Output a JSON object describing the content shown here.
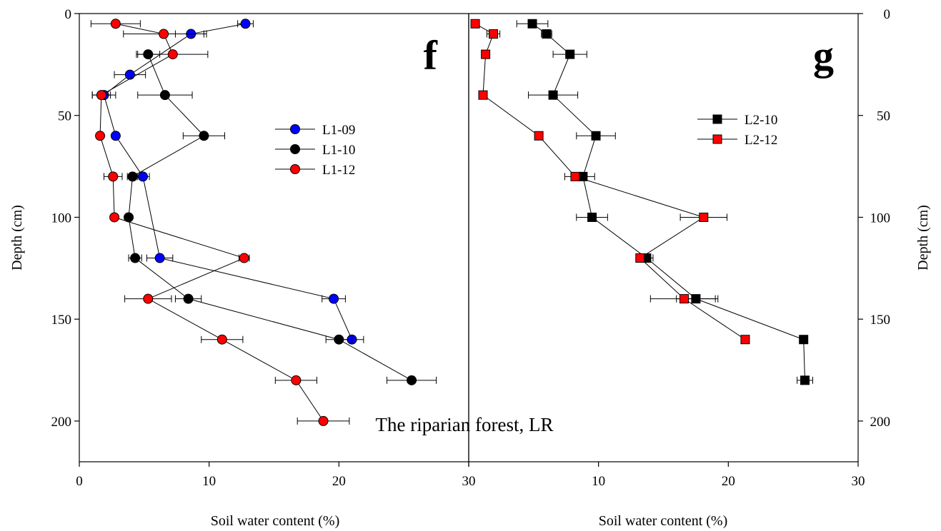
{
  "chart_data": [
    {
      "type": "scatter",
      "panel_label": "f",
      "xlabel": "Soil water content (%)",
      "ylabel": "Depth (cm)",
      "xlim": [
        0,
        30
      ],
      "ylim": [
        220,
        0
      ],
      "x_ticks": [
        0,
        10,
        20,
        30
      ],
      "y_ticks": [
        0,
        50,
        100,
        150,
        200
      ],
      "tick_labels_x": [
        "0",
        "10",
        "20",
        "30"
      ],
      "tick_labels_y": [
        "0",
        "50",
        "100",
        "150",
        "200"
      ],
      "grid": false,
      "legend_position": "center-right",
      "series": [
        {
          "name": "L1-09",
          "color": "#0000ff",
          "marker": "circle",
          "points": [
            {
              "x": 12.8,
              "y": 5,
              "err": 0.6
            },
            {
              "x": 8.6,
              "y": 10,
              "err": 1.2
            },
            {
              "x": 3.9,
              "y": 30,
              "err": 1.2
            },
            {
              "x": 1.9,
              "y": 40,
              "err": 0.9
            },
            {
              "x": 2.8,
              "y": 60,
              "err": 0
            },
            {
              "x": 4.9,
              "y": 80,
              "err": 0.5
            },
            {
              "x": 6.2,
              "y": 120,
              "err": 1.0
            },
            {
              "x": 19.6,
              "y": 140,
              "err": 0.9
            },
            {
              "x": 21.0,
              "y": 160,
              "err": 0.9
            }
          ]
        },
        {
          "name": "L1-10",
          "color": "#000000",
          "marker": "circle",
          "points": [
            {
              "x": 5.3,
              "y": 20,
              "err": 0.9
            },
            {
              "x": 6.6,
              "y": 40,
              "err": 2.1
            },
            {
              "x": 9.6,
              "y": 60,
              "err": 1.6
            },
            {
              "x": 4.1,
              "y": 80,
              "err": 0.4
            },
            {
              "x": 3.8,
              "y": 100,
              "err": 0
            },
            {
              "x": 4.3,
              "y": 120,
              "err": 0.5
            },
            {
              "x": 8.4,
              "y": 140,
              "err": 1.0
            },
            {
              "x": 20.0,
              "y": 160,
              "err": 1.0
            },
            {
              "x": 25.6,
              "y": 180,
              "err": 1.9
            }
          ]
        },
        {
          "name": "L1-12",
          "color": "#ff0000",
          "marker": "circle",
          "points": [
            {
              "x": 2.8,
              "y": 5,
              "err": 1.9
            },
            {
              "x": 6.5,
              "y": 10,
              "err": 3.1
            },
            {
              "x": 7.2,
              "y": 20,
              "err": 2.7
            },
            {
              "x": 1.7,
              "y": 40,
              "err": 0.7
            },
            {
              "x": 1.6,
              "y": 60,
              "err": 0
            },
            {
              "x": 2.6,
              "y": 80,
              "err": 0.7
            },
            {
              "x": 2.7,
              "y": 100,
              "err": 0
            },
            {
              "x": 12.7,
              "y": 120,
              "err": 0.4
            },
            {
              "x": 5.3,
              "y": 140,
              "err": 1.8
            },
            {
              "x": 11.0,
              "y": 160,
              "err": 1.6
            },
            {
              "x": 16.7,
              "y": 180,
              "err": 1.6
            },
            {
              "x": 18.8,
              "y": 200,
              "err": 2.0
            }
          ]
        }
      ]
    },
    {
      "type": "scatter",
      "panel_label": "g",
      "xlabel": "Soil water content (%)",
      "ylabel": "Depth (cm)",
      "xlim": [
        0,
        30
      ],
      "ylim": [
        220,
        0
      ],
      "x_ticks": [
        0,
        10,
        20,
        30
      ],
      "y_ticks": [
        0,
        50,
        100,
        150,
        200
      ],
      "tick_labels_x": [
        "10",
        "20",
        "30"
      ],
      "tick_labels_y": [
        "0",
        "50",
        "100",
        "150",
        "200"
      ],
      "grid": false,
      "legend_position": "center-right",
      "series": [
        {
          "name": "L2-10",
          "color": "#000000",
          "marker": "square",
          "points": [
            {
              "x": 4.9,
              "y": 5,
              "err": 1.2
            },
            {
              "x": 6.0,
              "y": 10,
              "err": 0.4
            },
            {
              "x": 7.8,
              "y": 20,
              "err": 1.3
            },
            {
              "x": 6.5,
              "y": 40,
              "err": 1.9
            },
            {
              "x": 9.8,
              "y": 60,
              "err": 1.5
            },
            {
              "x": 8.8,
              "y": 80,
              "err": 0.9
            },
            {
              "x": 9.5,
              "y": 100,
              "err": 1.2
            },
            {
              "x": 13.7,
              "y": 120,
              "err": 0.5
            },
            {
              "x": 17.5,
              "y": 140,
              "err": 1.5
            },
            {
              "x": 25.8,
              "y": 160,
              "err": 0
            },
            {
              "x": 25.9,
              "y": 180,
              "err": 0.6
            }
          ]
        },
        {
          "name": "L2-12",
          "color": "#ff0000",
          "marker": "square",
          "points": [
            {
              "x": 0.5,
              "y": 5,
              "err": 0
            },
            {
              "x": 1.9,
              "y": 10,
              "err": 0.5
            },
            {
              "x": 1.3,
              "y": 20,
              "err": 0
            },
            {
              "x": 1.1,
              "y": 40,
              "err": 0
            },
            {
              "x": 5.4,
              "y": 60,
              "err": 0
            },
            {
              "x": 8.2,
              "y": 80,
              "err": 0.8
            },
            {
              "x": 18.1,
              "y": 100,
              "err": 1.8
            },
            {
              "x": 13.2,
              "y": 120,
              "err": 0
            },
            {
              "x": 16.6,
              "y": 140,
              "err": 2.6
            },
            {
              "x": 21.3,
              "y": 160,
              "err": 0
            }
          ]
        }
      ]
    }
  ],
  "annotation": "The riparian forest, LR"
}
